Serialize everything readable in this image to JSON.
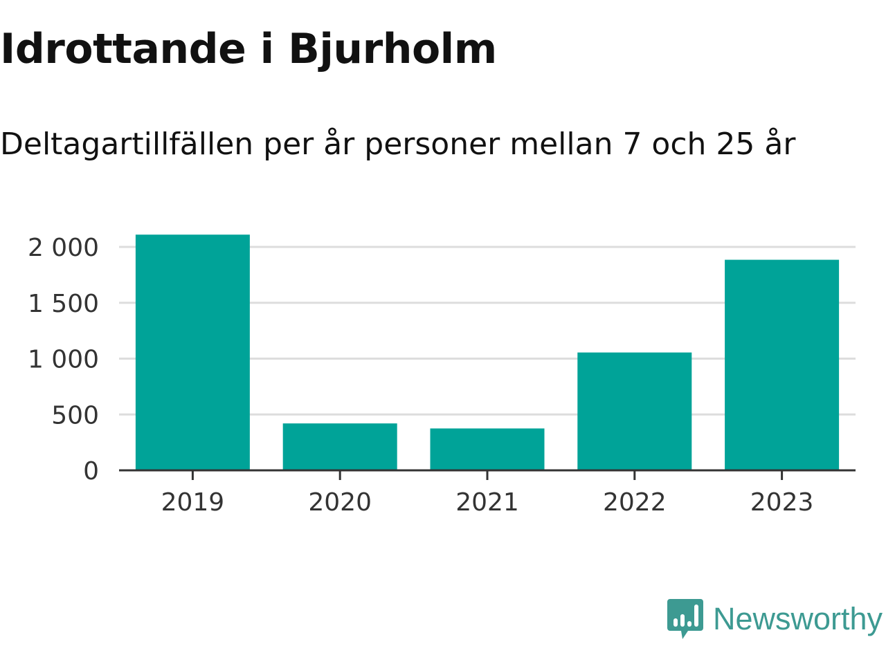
{
  "title": "Idrottande i Bjurholm",
  "subtitle": "Deltagartillfällen per år personer mellan 7 och 25 år",
  "brand": {
    "name": "Newsworthy",
    "icon": "newsworthy-logo-icon",
    "color": "#3d9a92"
  },
  "chart_data": {
    "type": "bar",
    "title": "Idrottande i Bjurholm",
    "subtitle": "Deltagartillfällen per år personer mellan 7 och 25 år",
    "categories": [
      "2019",
      "2020",
      "2021",
      "2022",
      "2023"
    ],
    "values": [
      2110,
      420,
      375,
      1055,
      1885
    ],
    "ylim": [
      0,
      2000
    ],
    "yticks": [
      0,
      500,
      1000,
      1500,
      2000
    ],
    "ytick_labels": [
      "0",
      "500",
      "1 000",
      "1 500",
      "2 000"
    ],
    "xlabel": "",
    "ylabel": "",
    "grid": true,
    "legend": "none",
    "bar_color": "#00a398",
    "grid_color": "#dddddd",
    "axis_color": "#333333"
  }
}
